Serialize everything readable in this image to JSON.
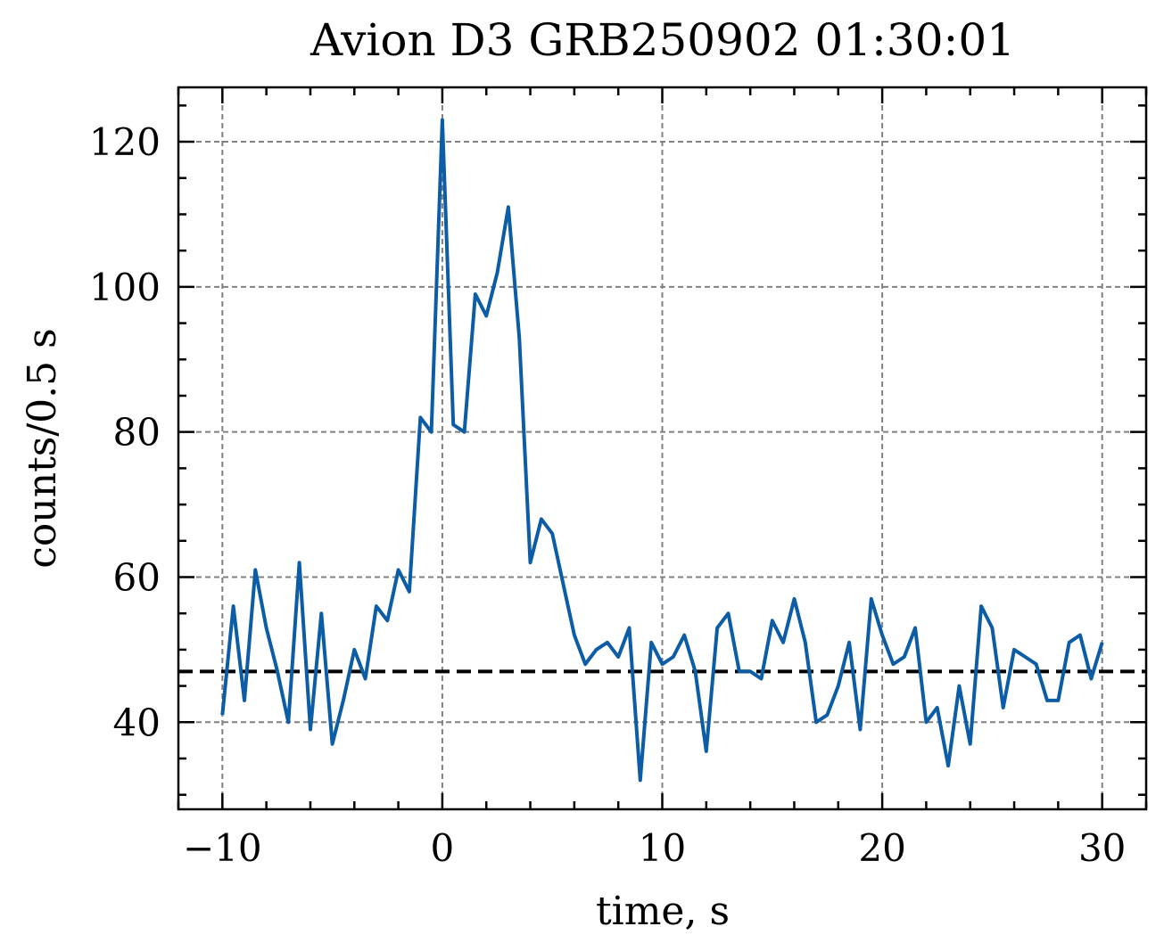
{
  "chart_data": {
    "type": "line",
    "title": "Avion D3 GRB250902 01:30:01",
    "xlabel": "time, s",
    "ylabel": "counts/0.5 s",
    "xlim": [
      -12,
      32
    ],
    "ylim": [
      28,
      127.5
    ],
    "xticks": [
      -10,
      0,
      10,
      20,
      30
    ],
    "xtick_labels": [
      "−10",
      "0",
      "10",
      "20",
      "30"
    ],
    "yticks": [
      40,
      60,
      80,
      100,
      120
    ],
    "ytick_labels": [
      "40",
      "60",
      "80",
      "100",
      "120"
    ],
    "grid": true,
    "line_color": "#0C5DA5",
    "background_level": {
      "y": 47,
      "style": "dashed",
      "color": "#000000"
    },
    "series": [
      {
        "x": [
          -10,
          -9.5,
          -9,
          -8.5,
          -8,
          -7.5,
          -7,
          -6.5,
          -6,
          -5.5,
          -5,
          -4.5,
          -4,
          -3.5,
          -3,
          -2.5,
          -2,
          -1.5,
          -1,
          -0.5,
          0,
          0.5,
          1,
          1.5,
          2,
          2.5,
          3,
          3.5,
          4,
          4.5,
          5,
          5.5,
          6,
          6.5,
          7,
          7.5,
          8,
          8.5,
          9,
          9.5,
          10,
          10.5,
          11,
          11.5,
          12,
          12.5,
          13,
          13.5,
          14,
          14.5,
          15,
          15.5,
          16,
          16.5,
          17,
          17.5,
          18,
          18.5,
          19,
          19.5,
          20,
          20.5,
          21,
          21.5,
          22,
          22.5,
          23,
          23.5,
          24,
          24.5,
          25,
          25.5,
          26,
          26.5,
          27,
          27.5,
          28,
          28.5,
          29,
          29.5,
          30
        ],
        "y": [
          41,
          56,
          43,
          61,
          53,
          47,
          40,
          62,
          39,
          55,
          37,
          43,
          50,
          46,
          56,
          54,
          61,
          58,
          82,
          80,
          123,
          81,
          80,
          99,
          96,
          102,
          111,
          93,
          62,
          68,
          66,
          59,
          52,
          48,
          50,
          51,
          49,
          53,
          32,
          51,
          48,
          49,
          52,
          47,
          36,
          53,
          55,
          47,
          47,
          46,
          54,
          51,
          57,
          51,
          40,
          41,
          45,
          51,
          39,
          57,
          52,
          48,
          49,
          53,
          40,
          42,
          34,
          45,
          37,
          56,
          53,
          42,
          50,
          49,
          48,
          43,
          43,
          51,
          52,
          46,
          51
        ]
      }
    ]
  }
}
